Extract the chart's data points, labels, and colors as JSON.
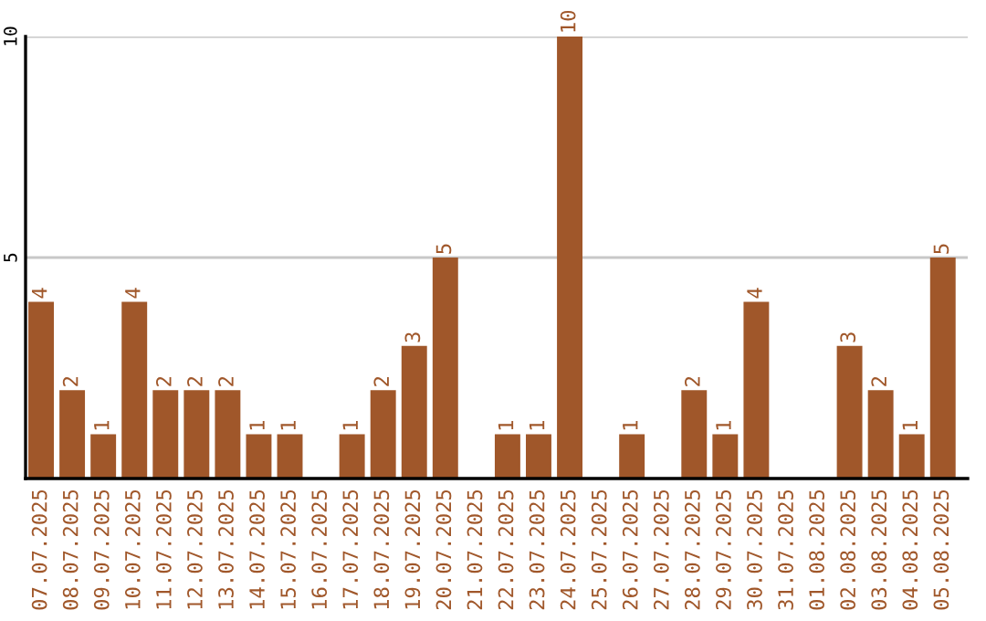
{
  "chart_data": {
    "type": "bar",
    "categories": [
      "07.07.2025",
      "08.07.2025",
      "09.07.2025",
      "10.07.2025",
      "11.07.2025",
      "12.07.2025",
      "13.07.2025",
      "14.07.2025",
      "15.07.2025",
      "16.07.2025",
      "17.07.2025",
      "18.07.2025",
      "19.07.2025",
      "20.07.2025",
      "21.07.2025",
      "22.07.2025",
      "23.07.2025",
      "24.07.2025",
      "25.07.2025",
      "26.07.2025",
      "27.07.2025",
      "28.07.2025",
      "29.07.2025",
      "30.07.2025",
      "31.07.2025",
      "01.08.2025",
      "02.08.2025",
      "03.08.2025",
      "04.08.2025",
      "05.08.2025"
    ],
    "values": [
      4,
      2,
      1,
      4,
      2,
      2,
      2,
      1,
      1,
      0,
      1,
      2,
      3,
      5,
      0,
      1,
      1,
      10,
      0,
      1,
      0,
      2,
      1,
      4,
      0,
      0,
      3,
      2,
      1,
      5
    ],
    "value_labels": [
      "4",
      "2",
      "1",
      "4",
      "2",
      "2",
      "2",
      "1",
      "1",
      null,
      "1",
      "2",
      "3",
      "5",
      null,
      "1",
      "1",
      "10",
      null,
      "1",
      null,
      "2",
      "1",
      "4",
      null,
      null,
      "3",
      "2",
      "1",
      "5"
    ],
    "color": "#a0572a",
    "ylim": [
      0,
      10
    ],
    "yticks": [
      {
        "value": 0,
        "label": null
      },
      5,
      10
    ],
    "grid": "y",
    "legend": false
  }
}
